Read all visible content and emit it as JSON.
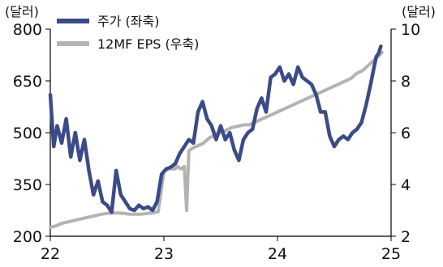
{
  "chart_data": {
    "type": "line",
    "title": "",
    "xlabel": "",
    "left_axis": {
      "unit_label": "(달러)",
      "ylim": [
        200,
        800
      ],
      "ticks": [
        "200",
        "350",
        "500",
        "650",
        "800"
      ]
    },
    "right_axis": {
      "unit_label": "(달러)",
      "ylim": [
        2,
        10
      ],
      "ticks": [
        "2",
        "4",
        "6",
        "8",
        "10"
      ]
    },
    "x_axis": {
      "range": [
        22,
        25
      ],
      "ticks": [
        "22",
        "23",
        "24",
        "25"
      ]
    },
    "grid": false,
    "legend_position": "top-left",
    "series": [
      {
        "name": "주가 (좌축)",
        "axis": "left",
        "color": "#3b4b86",
        "x": [
          22.0,
          22.03,
          22.06,
          22.1,
          22.14,
          22.18,
          22.22,
          22.26,
          22.3,
          22.34,
          22.38,
          22.42,
          22.46,
          22.5,
          22.54,
          22.58,
          22.62,
          22.66,
          22.7,
          22.74,
          22.78,
          22.82,
          22.86,
          22.9,
          22.94,
          22.98,
          23.02,
          23.06,
          23.1,
          23.14,
          23.18,
          23.22,
          23.26,
          23.3,
          23.34,
          23.38,
          23.42,
          23.46,
          23.5,
          23.54,
          23.58,
          23.62,
          23.66,
          23.7,
          23.74,
          23.78,
          23.82,
          23.86,
          23.9,
          23.94,
          23.98,
          24.02,
          24.06,
          24.1,
          24.14,
          24.18,
          24.22,
          24.26,
          24.3,
          24.34,
          24.38,
          24.42,
          24.46,
          24.5,
          24.54,
          24.58,
          24.62,
          24.66,
          24.7,
          24.74,
          24.78,
          24.82,
          24.85,
          24.87,
          24.89,
          24.91
        ],
        "y": [
          610,
          460,
          520,
          470,
          540,
          430,
          500,
          420,
          480,
          390,
          320,
          360,
          300,
          290,
          270,
          390,
          320,
          300,
          280,
          275,
          290,
          280,
          285,
          275,
          300,
          380,
          395,
          400,
          410,
          440,
          460,
          480,
          470,
          560,
          590,
          540,
          520,
          480,
          520,
          480,
          500,
          450,
          420,
          480,
          500,
          510,
          570,
          600,
          560,
          660,
          670,
          690,
          650,
          670,
          640,
          690,
          660,
          650,
          640,
          610,
          560,
          560,
          490,
          460,
          480,
          490,
          480,
          500,
          510,
          530,
          580,
          640,
          690,
          720,
          730,
          750
        ]
      },
      {
        "name": "12MF EPS (우축)",
        "axis": "right",
        "color": "#b3b3b3",
        "x": [
          22.0,
          22.05,
          22.1,
          22.15,
          22.2,
          22.25,
          22.3,
          22.35,
          22.4,
          22.45,
          22.5,
          22.55,
          22.6,
          22.65,
          22.7,
          22.75,
          22.8,
          22.85,
          22.9,
          22.95,
          23.0,
          23.02,
          23.05,
          23.08,
          23.1,
          23.12,
          23.15,
          23.18,
          23.2,
          23.22,
          23.25,
          23.3,
          23.35,
          23.4,
          23.45,
          23.5,
          23.55,
          23.6,
          23.65,
          23.7,
          23.75,
          23.8,
          23.85,
          23.9,
          23.95,
          24.0,
          24.05,
          24.1,
          24.15,
          24.2,
          24.25,
          24.3,
          24.35,
          24.4,
          24.45,
          24.5,
          24.55,
          24.6,
          24.65,
          24.7,
          24.75,
          24.8,
          24.85,
          24.9,
          24.92
        ],
        "y": [
          2.35,
          2.4,
          2.5,
          2.55,
          2.6,
          2.65,
          2.7,
          2.75,
          2.8,
          2.85,
          2.88,
          2.9,
          2.9,
          2.88,
          2.85,
          2.85,
          2.85,
          2.88,
          2.9,
          2.95,
          4.5,
          4.55,
          4.6,
          4.6,
          4.6,
          4.7,
          4.6,
          4.7,
          3.0,
          5.3,
          5.4,
          5.5,
          5.6,
          5.8,
          5.9,
          6.0,
          6.1,
          6.2,
          6.25,
          6.3,
          6.3,
          6.4,
          6.5,
          6.6,
          6.7,
          6.8,
          6.9,
          7.0,
          7.1,
          7.2,
          7.3,
          7.4,
          7.5,
          7.6,
          7.7,
          7.8,
          7.9,
          8.0,
          8.1,
          8.3,
          8.4,
          8.6,
          8.8,
          9.0,
          9.1
        ]
      }
    ]
  }
}
